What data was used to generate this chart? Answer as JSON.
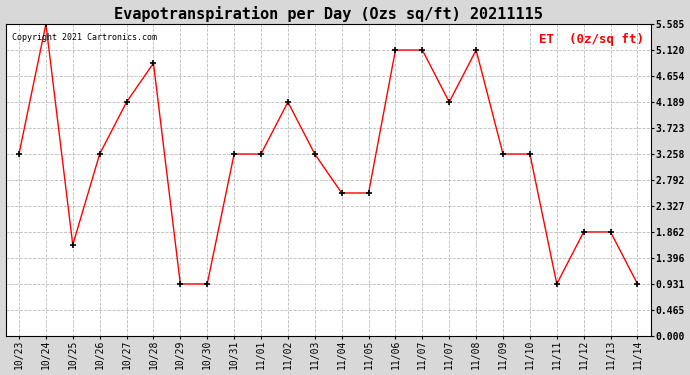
{
  "title": "Evapotranspiration per Day (Ozs sq/ft) 20211115",
  "legend_label": "ET  (0z/sq ft)",
  "copyright": "Copyright 2021 Cartronics.com",
  "x_labels": [
    "10/23",
    "10/24",
    "10/25",
    "10/26",
    "10/27",
    "10/28",
    "10/29",
    "10/30",
    "10/31",
    "11/01",
    "11/02",
    "11/03",
    "11/04",
    "11/05",
    "11/06",
    "11/07",
    "11/07",
    "11/08",
    "11/09",
    "11/10",
    "11/11",
    "11/12",
    "11/13",
    "11/14"
  ],
  "y_values": [
    3.258,
    5.585,
    1.63,
    3.258,
    4.189,
    4.885,
    0.931,
    0.931,
    3.258,
    3.258,
    4.189,
    3.258,
    2.56,
    2.56,
    5.12,
    5.12,
    4.189,
    5.12,
    3.258,
    3.258,
    0.931,
    1.862,
    1.862,
    0.931
  ],
  "line_color": "#ff0000",
  "marker": "+",
  "marker_color": "#000000",
  "grid_color": "#bbbbbb",
  "plot_bg_color": "#ffffff",
  "figure_bg_color": "#d8d8d8",
  "ylim": [
    0.0,
    5.585
  ],
  "yticks": [
    0.0,
    0.465,
    0.931,
    1.396,
    1.862,
    2.327,
    2.792,
    3.258,
    3.723,
    4.189,
    4.654,
    5.12,
    5.585
  ],
  "title_fontsize": 11,
  "legend_fontsize": 9,
  "tick_fontsize": 7,
  "copyright_fontsize": 6
}
